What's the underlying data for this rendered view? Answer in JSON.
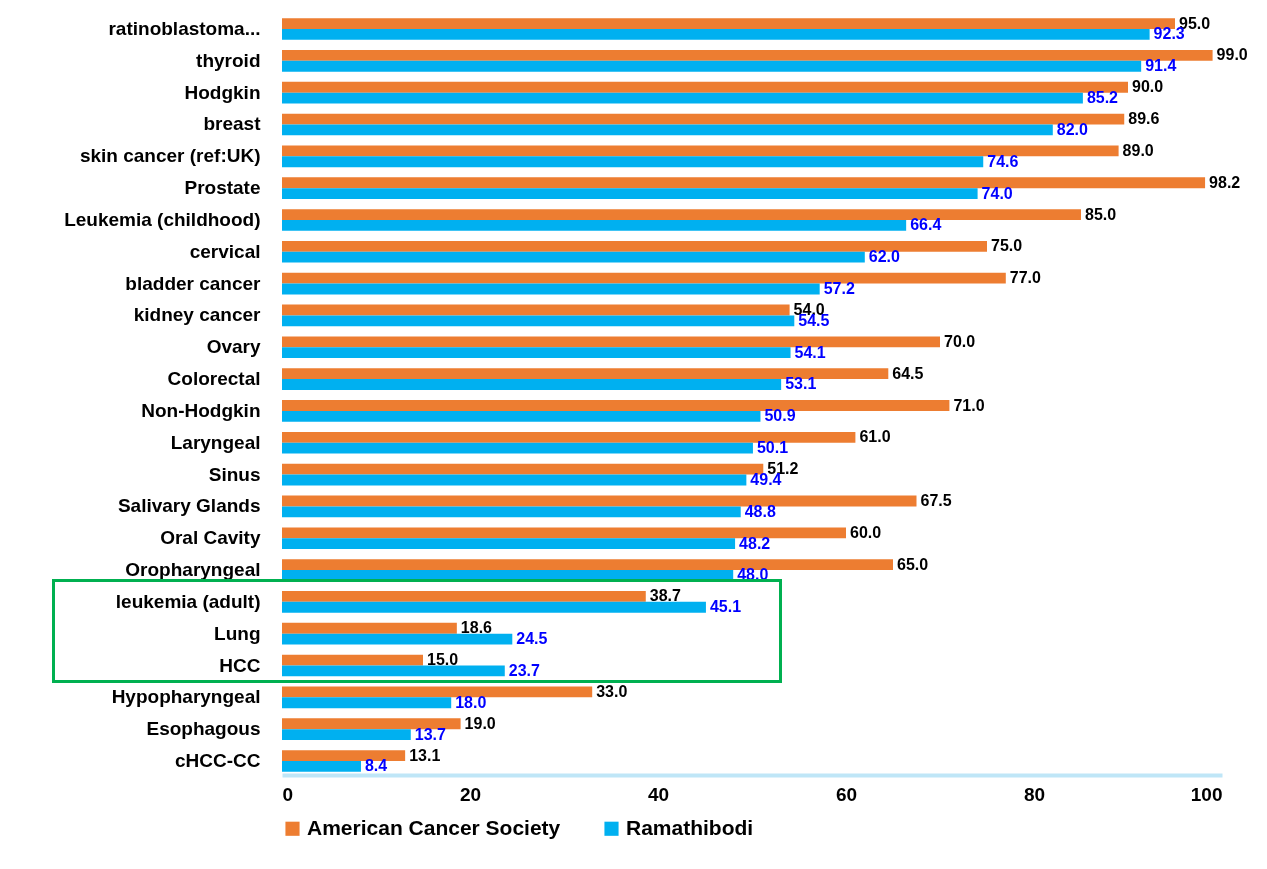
{
  "chart_data": {
    "type": "bar",
    "orientation": "horizontal",
    "categories": [
      "ratinoblastoma...",
      "thyroid",
      "Hodgkin",
      "breast",
      "skin cancer (ref:UK)",
      "Prostate",
      "Leukemia (childhood)",
      "cervical",
      "bladder cancer",
      "kidney cancer",
      "Ovary",
      "Colorectal",
      "Non-Hodgkin",
      "Laryngeal",
      "Sinus",
      "Salivary Glands",
      "Oral Cavity",
      "Oropharyngeal",
      "leukemia (adult)",
      "Lung",
      "HCC",
      "Hypopharyngeal",
      "Esophagous",
      "cHCC-CC"
    ],
    "series": [
      {
        "name": "American Cancer Society",
        "color": "#ed7d31",
        "values": [
          95.0,
          99.0,
          90.0,
          89.6,
          89.0,
          98.2,
          85.0,
          75.0,
          77.0,
          54.0,
          70.0,
          64.5,
          71.0,
          61.0,
          51.2,
          67.5,
          60.0,
          65.0,
          38.7,
          18.6,
          15.0,
          33.0,
          19.0,
          13.1
        ],
        "value_labels": [
          "95.0",
          "99.0",
          "90.0",
          "89.6",
          "89.0",
          "98.2",
          "85.0",
          "75.0",
          "77.0",
          "54.0",
          "70.0",
          "64.5",
          "71.0",
          "61.0",
          "51.2",
          "67.5",
          "60.0",
          "65.0",
          "38.7",
          "18.6",
          "15.0",
          "33.0",
          "19.0",
          "13.1"
        ]
      },
      {
        "name": "Ramathibodi",
        "color": "#00b0f0",
        "values": [
          92.3,
          91.4,
          85.2,
          82.0,
          74.6,
          74.0,
          66.4,
          62.0,
          57.2,
          54.5,
          54.1,
          53.1,
          50.9,
          50.1,
          49.4,
          48.8,
          48.2,
          48.0,
          45.1,
          24.5,
          23.7,
          18.0,
          13.7,
          8.4
        ],
        "value_labels": [
          "92.3",
          "91.4",
          "85.2",
          "82.0",
          "74.6",
          "74.0",
          "66.4",
          "62.0",
          "57.2",
          "54.5",
          "54.1",
          "53.1",
          "50.9",
          "50.1",
          "49.4",
          "48.8",
          "48.2",
          "48.0",
          "45.1",
          "24.5",
          "23.7",
          "18.0",
          "13.7",
          "8.4"
        ]
      }
    ],
    "xlim": [
      0,
      100
    ],
    "xticks": [
      0,
      20,
      40,
      60,
      80,
      100
    ],
    "grid": false,
    "legend": "bottom"
  }
}
